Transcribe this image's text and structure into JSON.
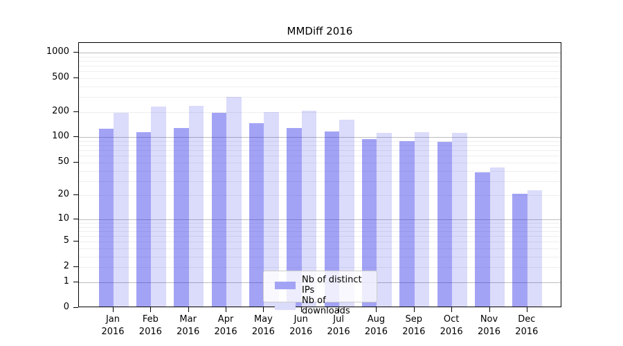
{
  "chart_data": {
    "type": "bar",
    "title": "MMDiff 2016",
    "categories": [
      "Jan",
      "Feb",
      "Mar",
      "Apr",
      "May",
      "Jun",
      "Jul",
      "Aug",
      "Sep",
      "Oct",
      "Nov",
      "Dec"
    ],
    "category_year": "2016",
    "series": [
      {
        "name": "Nb of distinct IPs",
        "color": "rgba(25,25,230,0.40)",
        "color_hex_on_white": "#a3a3f5",
        "values": [
          127,
          115,
          130,
          197,
          146,
          130,
          118,
          95,
          90,
          88,
          38,
          21
        ]
      },
      {
        "name": "Nb of downloads",
        "color": "rgba(25,25,230,0.155)",
        "color_hex_on_white": "#dbdbfb",
        "values": [
          194,
          231,
          236,
          300,
          198,
          208,
          161,
          114,
          116,
          114,
          44,
          23
        ]
      }
    ],
    "xlabel": "",
    "ylabel": "",
    "yscale": "symlog-log1p",
    "yticks": [
      0,
      1,
      2,
      5,
      10,
      20,
      50,
      100,
      200,
      500,
      1000
    ],
    "ylim": [
      0,
      1300
    ],
    "grid": true,
    "grid_major_values": [
      1,
      10,
      100,
      1000
    ],
    "legend_position": "lower-center",
    "legend_entries": [
      "Nb of distinct IPs",
      "Nb of downloads"
    ]
  }
}
